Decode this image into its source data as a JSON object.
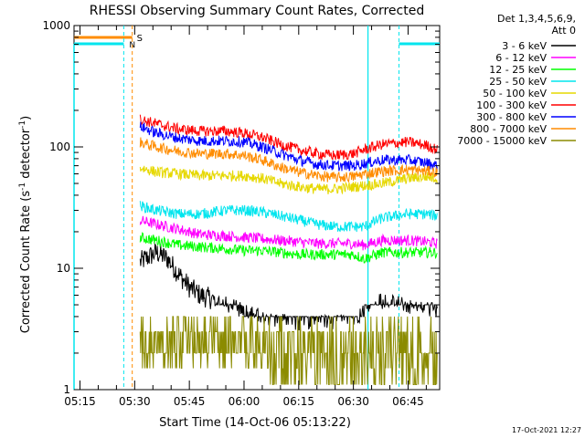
{
  "chart_data": {
    "type": "line",
    "title": "RHESSI Observing Summary Count Rates, Corrected",
    "xlabel": "Start Time (14-Oct-06 05:13:22)",
    "ylabel_main": "Corrected Count Rate (s",
    "ylabel_sup1": "-1",
    "ylabel_mid": " detector",
    "ylabel_sup2": "-1",
    "ylabel_end": ")",
    "y_scale": "log",
    "ylim": [
      1,
      1000
    ],
    "xlim": [
      "05:13:22",
      "06:53:40"
    ],
    "x_ticks": [
      "05:15",
      "05:30",
      "05:45",
      "06:00",
      "06:15",
      "06:30",
      "06:45"
    ],
    "y_ticks": [
      "1",
      "10",
      "100",
      "1000"
    ],
    "legend_title": "Det 1,3,4,5,6,9,",
    "legend_subtitle": "Att 0",
    "legend_position": "top-right",
    "footer": "17-Oct-2021 12:27",
    "state_bars": {
      "S_label": "S",
      "N_label": "N",
      "saa": {
        "color": "#ff8c00",
        "start": "05:13:22",
        "end": "05:29:20"
      },
      "night": [
        {
          "color": "#00e5ee",
          "start": "05:13:22",
          "end": "05:27:00"
        },
        {
          "color": "#00e5ee",
          "start": "06:42:30",
          "end": "06:53:40"
        }
      ],
      "night_markers": [
        "05:27:00",
        "06:34:00",
        "06:42:30"
      ],
      "saa_markers": [
        "05:29:20"
      ],
      "data_start": "05:31:30",
      "data_end": "06:53:00"
    },
    "series": [
      {
        "name": "3 - 6 keV",
        "color": "#000000",
        "x": [
          "05:31",
          "05:33",
          "05:36",
          "05:39",
          "05:42",
          "05:45",
          "05:48",
          "05:52",
          "05:56",
          "06:00",
          "06:05",
          "06:10",
          "06:15",
          "06:20",
          "06:25",
          "06:30",
          "06:33",
          "06:36",
          "06:40",
          "06:45",
          "06:50",
          "06:53"
        ],
        "values": [
          11,
          12,
          13.5,
          12,
          9,
          7,
          6,
          5.5,
          5,
          4.5,
          4,
          3.7,
          3.6,
          3.6,
          3.6,
          3.8,
          4.5,
          5.5,
          5.3,
          5,
          4.6,
          4.6
        ]
      },
      {
        "name": "6 - 12 keV",
        "color": "#ff00ff",
        "x": [
          "05:31",
          "05:36",
          "05:42",
          "05:48",
          "05:55",
          "06:00",
          "06:05",
          "06:10",
          "06:15",
          "06:20",
          "06:25",
          "06:30",
          "06:33",
          "06:38",
          "06:45",
          "06:50",
          "06:53"
        ],
        "values": [
          25,
          23,
          21,
          19,
          18.5,
          18,
          17.5,
          17,
          16.5,
          16,
          16,
          16,
          15.5,
          17,
          17,
          16.5,
          16
        ]
      },
      {
        "name": "12 - 25 keV",
        "color": "#00ff00",
        "x": [
          "05:31",
          "05:36",
          "05:42",
          "05:48",
          "05:55",
          "06:00",
          "06:05",
          "06:10",
          "06:15",
          "06:20",
          "06:25",
          "06:30",
          "06:33",
          "06:38",
          "06:45",
          "06:50",
          "06:53"
        ],
        "values": [
          18,
          17,
          15.5,
          15,
          14.5,
          14,
          14,
          13.5,
          13,
          13,
          13,
          13,
          12,
          13.5,
          13.5,
          13.5,
          13.5
        ]
      },
      {
        "name": "25 - 50 keV",
        "color": "#00e5ee",
        "x": [
          "05:31",
          "05:36",
          "05:42",
          "05:48",
          "05:55",
          "06:00",
          "06:05",
          "06:10",
          "06:15",
          "06:20",
          "06:25",
          "06:30",
          "06:33",
          "06:38",
          "06:45",
          "06:50",
          "06:53"
        ],
        "values": [
          33,
          30,
          28,
          28,
          30,
          30,
          29,
          27,
          25,
          23,
          22,
          22,
          22,
          26,
          28,
          28,
          27
        ]
      },
      {
        "name": "50 - 100 keV",
        "color": "#e6d800",
        "x": [
          "05:31",
          "05:36",
          "05:42",
          "05:48",
          "05:55",
          "06:00",
          "06:05",
          "06:10",
          "06:15",
          "06:20",
          "06:25",
          "06:30",
          "06:33",
          "06:38",
          "06:45",
          "06:50",
          "06:53"
        ],
        "values": [
          68,
          62,
          60,
          58,
          58,
          58,
          55,
          50,
          47,
          45,
          45,
          47,
          48,
          50,
          55,
          57,
          55
        ]
      },
      {
        "name": "100 - 300 keV",
        "color": "#ff0000",
        "x": [
          "05:31",
          "05:36",
          "05:42",
          "05:48",
          "05:55",
          "06:00",
          "06:05",
          "06:10",
          "06:15",
          "06:20",
          "06:25",
          "06:30",
          "06:33",
          "06:38",
          "06:45",
          "06:50",
          "06:53"
        ],
        "values": [
          170,
          155,
          140,
          135,
          135,
          130,
          120,
          105,
          95,
          88,
          85,
          88,
          95,
          105,
          110,
          103,
          95
        ]
      },
      {
        "name": "300 - 800 keV",
        "color": "#0000ff",
        "x": [
          "05:31",
          "05:36",
          "05:42",
          "05:48",
          "05:55",
          "06:00",
          "06:05",
          "06:10",
          "06:15",
          "06:20",
          "06:25",
          "06:30",
          "06:33",
          "06:38",
          "06:45",
          "06:50",
          "06:53"
        ],
        "values": [
          150,
          130,
          118,
          112,
          112,
          110,
          100,
          88,
          78,
          72,
          70,
          70,
          73,
          78,
          78,
          74,
          70
        ]
      },
      {
        "name": "800 - 7000 keV",
        "color": "#ff8c00",
        "x": [
          "05:31",
          "05:36",
          "05:42",
          "05:48",
          "05:55",
          "06:00",
          "06:05",
          "06:10",
          "06:15",
          "06:20",
          "06:25",
          "06:30",
          "06:33",
          "06:38",
          "06:45",
          "06:50",
          "06:53"
        ],
        "values": [
          110,
          100,
          92,
          88,
          88,
          85,
          78,
          68,
          62,
          58,
          56,
          57,
          60,
          63,
          65,
          63,
          62
        ]
      },
      {
        "name": "7000 - 15000 keV",
        "color": "#8b8b00",
        "x": [
          "05:31",
          "05:36",
          "05:42",
          "05:48",
          "05:55",
          "06:00",
          "06:05",
          "06:10",
          "06:15",
          "06:20",
          "06:25",
          "06:30",
          "06:33",
          "06:38",
          "06:45",
          "06:50",
          "06:53"
        ],
        "values": [
          2,
          2.5,
          2,
          2.5,
          2.5,
          3,
          3,
          3,
          3,
          2.5,
          2.5,
          2.5,
          3,
          3.5,
          3.5,
          3.5,
          3
        ]
      }
    ]
  }
}
